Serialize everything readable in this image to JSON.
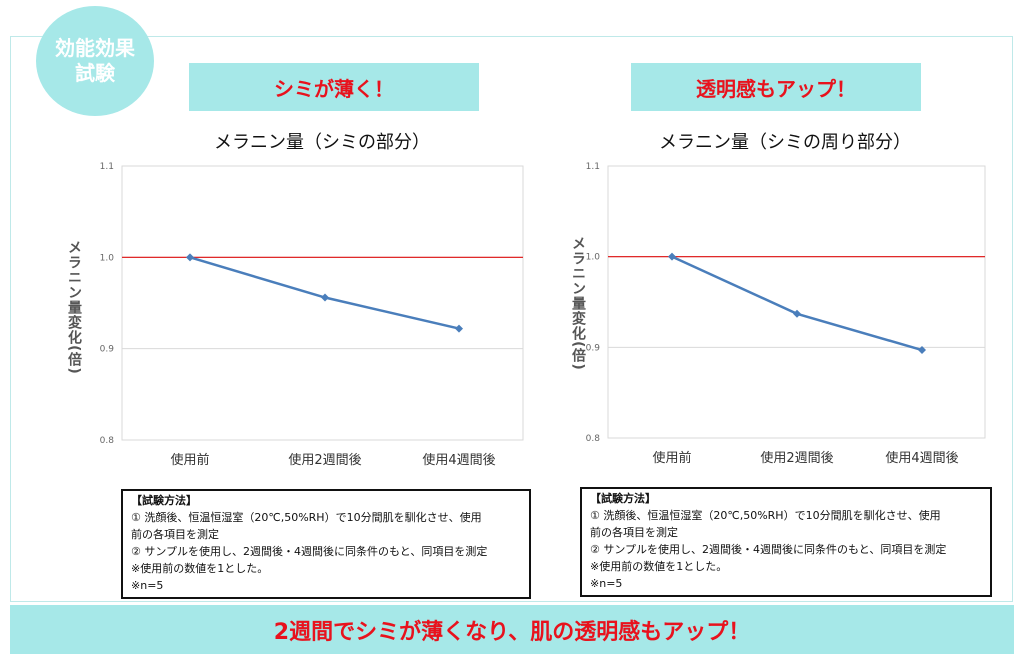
{
  "badge": {
    "line1": "効能効果",
    "line2": "試験"
  },
  "footer": {
    "text": "2週間でシミが薄くなり、肌の透明感もアップ！"
  },
  "colors": {
    "accent_bg": "#a6e8e8",
    "headline_red": "#e8121d",
    "series_blue": "#4a7ebb",
    "baseline_red": "#e01010"
  },
  "chart_data": [
    {
      "type": "line",
      "banner": "シミが薄く！",
      "title": "メラニン量（シミの部分）",
      "xlabel": "",
      "ylabel": "メラニン量変化(倍)",
      "categories": [
        "使用前",
        "使用2週間後",
        "使用4週間後"
      ],
      "series": [
        {
          "values": [
            1.0,
            0.956,
            0.922
          ]
        }
      ],
      "baseline": 1.0,
      "ylim": [
        0.8,
        1.1
      ],
      "yticks": [
        "0.8",
        "0.9",
        "1.0",
        "1.1"
      ],
      "grid": true,
      "method": {
        "heading": "【試験方法】",
        "lines": [
          "① 洗顔後、恒温恒湿室（20℃,50%RH）で10分間肌を馴化させ、使用",
          "前の各項目を測定",
          "② サンプルを使用し、2週間後・4週間後に同条件のもと、同項目を測定",
          "※使用前の数値を1とした。",
          "※n=5"
        ]
      }
    },
    {
      "type": "line",
      "banner": "透明感もアップ！",
      "title": "メラニン量（シミの周り部分）",
      "xlabel": "",
      "ylabel": "メラニン量変化(倍)",
      "categories": [
        "使用前",
        "使用2週間後",
        "使用4週間後"
      ],
      "series": [
        {
          "values": [
            1.0,
            0.937,
            0.897
          ]
        }
      ],
      "baseline": 1.0,
      "ylim": [
        0.8,
        1.1
      ],
      "yticks": [
        "0.8",
        "0.9",
        "1.0",
        "1.1"
      ],
      "grid": true,
      "method": {
        "heading": "【試験方法】",
        "lines": [
          "① 洗顔後、恒温恒湿室（20℃,50%RH）で10分間肌を馴化させ、使用",
          "前の各項目を測定",
          "② サンプルを使用し、2週間後・4週間後に同条件のもと、同項目を測定",
          "※使用前の数値を1とした。",
          "※n=5"
        ]
      }
    }
  ]
}
